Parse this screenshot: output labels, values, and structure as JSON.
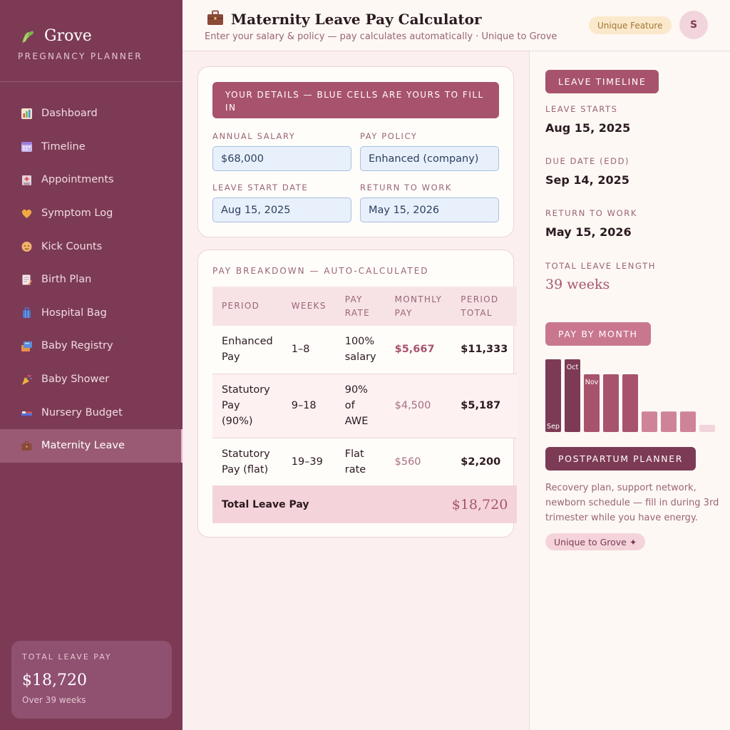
{
  "sidebar": {
    "brand_name": "Grove",
    "brand_sub": "PREGNANCY PLANNER",
    "items": [
      {
        "label": "Dashboard",
        "icon": "chart-icon"
      },
      {
        "label": "Timeline",
        "icon": "calendar-icon"
      },
      {
        "label": "Appointments",
        "icon": "hospital-icon"
      },
      {
        "label": "Symptom Log",
        "icon": "heart-icon"
      },
      {
        "label": "Kick Counts",
        "icon": "baby-icon"
      },
      {
        "label": "Birth Plan",
        "icon": "memo-icon"
      },
      {
        "label": "Hospital Bag",
        "icon": "bag-icon"
      },
      {
        "label": "Baby Registry",
        "icon": "registry-icon"
      },
      {
        "label": "Baby Shower",
        "icon": "party-icon"
      },
      {
        "label": "Nursery Budget",
        "icon": "bed-icon"
      },
      {
        "label": "Maternity Leave",
        "icon": "briefcase-icon"
      }
    ],
    "total_card": {
      "label": "TOTAL LEAVE PAY",
      "value": "$18,720",
      "sub": "Over 39 weeks"
    }
  },
  "header": {
    "title": "Maternity Leave Pay Calculator",
    "subtitle": "Enter your salary & policy — pay calculates automatically · Unique to Grove",
    "badge": "Unique Feature",
    "avatar": "S"
  },
  "details": {
    "banner": "YOUR DETAILS — BLUE CELLS ARE YOURS TO FILL IN",
    "annual_salary_label": "ANNUAL SALARY",
    "annual_salary": "$68,000",
    "pay_policy_label": "PAY POLICY",
    "pay_policy": "Enhanced (company)",
    "leave_start_label": "LEAVE START DATE",
    "leave_start": "Aug 15, 2025",
    "return_label": "RETURN TO WORK",
    "return_date": "May 15, 2026"
  },
  "breakdown": {
    "title": "PAY BREAKDOWN — AUTO-CALCULATED",
    "columns": [
      "PERIOD",
      "WEEKS",
      "PAY RATE",
      "MONTHLY PAY",
      "PERIOD TOTAL"
    ],
    "rows": [
      {
        "period": "Enhanced Pay",
        "weeks": "1–8",
        "rate": "100% salary",
        "monthly": "$5,667",
        "total": "$11,333"
      },
      {
        "period": "Statutory Pay (90%)",
        "weeks": "9–18",
        "rate": "90% of AWE",
        "monthly": "$4,500",
        "total": "$5,187"
      },
      {
        "period": "Statutory Pay (flat)",
        "weeks": "19–39",
        "rate": "Flat rate",
        "monthly": "$560",
        "total": "$2,200"
      }
    ],
    "total_label": "Total Leave Pay",
    "total_value": "$18,720"
  },
  "right": {
    "timeline_head": "LEAVE TIMELINE",
    "leave_starts_label": "LEAVE STARTS",
    "leave_starts": "Aug 15, 2025",
    "due_label": "DUE DATE (EDD)",
    "due_date": "Sep 14, 2025",
    "return_label": "RETURN TO WORK",
    "return_date": "May 15, 2026",
    "length_label": "TOTAL LEAVE LENGTH",
    "length_value": "39 weeks",
    "pay_head": "PAY BY MONTH",
    "postpartum_head": "POSTPARTUM PLANNER",
    "postpartum_text": "Recovery plan, support network, newborn schedule — fill in during 3rd trimester while you have energy.",
    "grove_tag": "Unique to Grove ✦"
  },
  "chart_data": {
    "type": "bar",
    "categories": [
      "Sep",
      "Oct",
      "Nov",
      "",
      "",
      "",
      "",
      "",
      ""
    ],
    "values": [
      5667,
      5667,
      4500,
      4500,
      4500,
      1600,
      1600,
      1600,
      560
    ],
    "colors": [
      "#7d3a55",
      "#7d3a55",
      "#a8536d",
      "#a8536d",
      "#a8536d",
      "#cf8398",
      "#cf8398",
      "#cf8398",
      "#f2d4dc"
    ],
    "title": "PAY BY MONTH",
    "ylim": [
      0,
      5667
    ]
  },
  "colors": {
    "sidebar": "#7d3a55",
    "accent": "#a8536d",
    "input_bg": "#e8f0fb"
  }
}
